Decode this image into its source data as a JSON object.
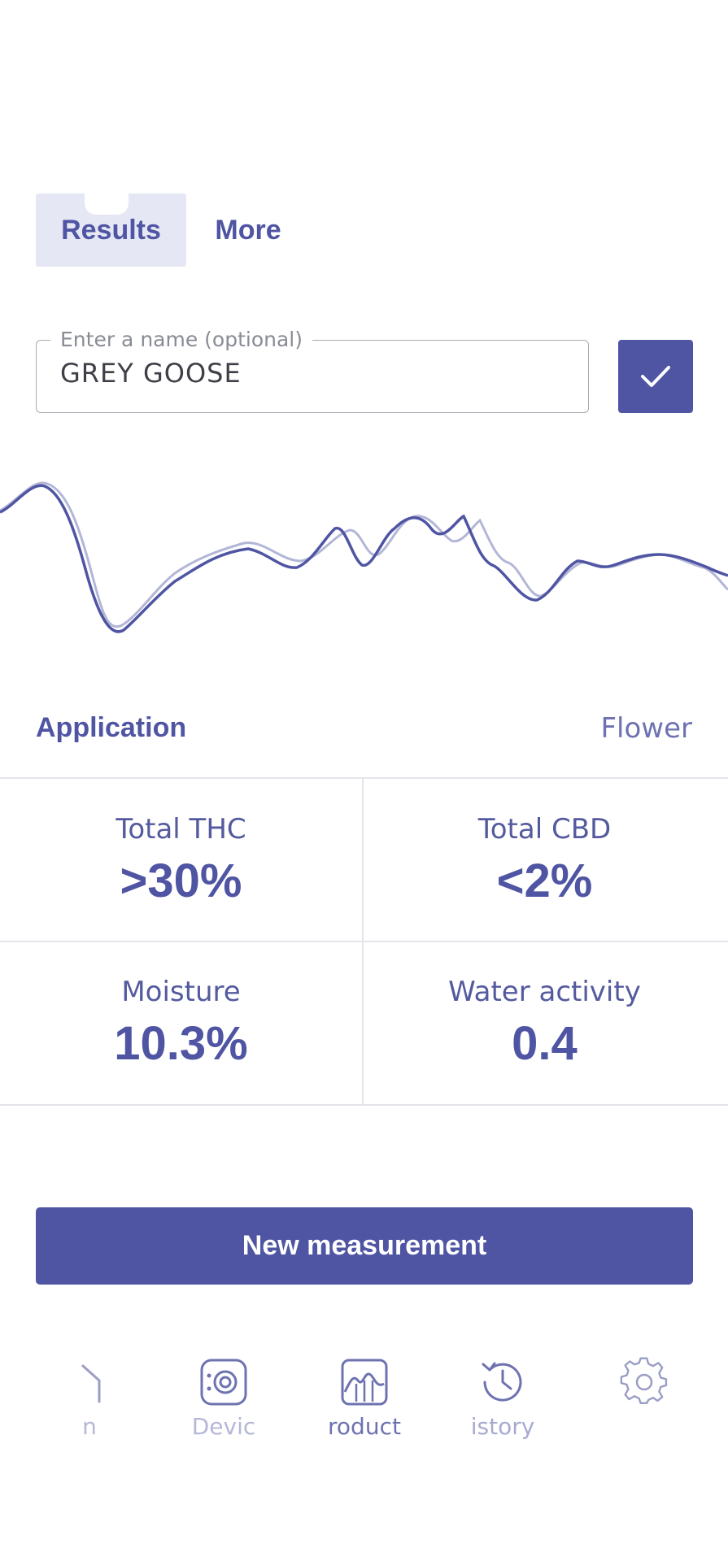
{
  "tabs": [
    {
      "label": "Results",
      "active": true
    },
    {
      "label": "More",
      "active": false
    }
  ],
  "name_field": {
    "legend": "Enter a name (optional)",
    "value": "GREY GOOSE"
  },
  "application": {
    "label": "Application",
    "value": "Flower"
  },
  "metrics": [
    {
      "label": "Total THC",
      "value": ">30%"
    },
    {
      "label": "Total CBD",
      "value": "<2%"
    },
    {
      "label": "Moisture",
      "value": "10.3%"
    },
    {
      "label": "Water activity",
      "value": "0.4"
    }
  ],
  "new_measurement_label": "New measurement",
  "nav": [
    {
      "label": "n",
      "icon": "scan-icon"
    },
    {
      "label": "Devic",
      "icon": "device-icon"
    },
    {
      "label": "roduct",
      "icon": "product-icon"
    },
    {
      "label": "istory",
      "icon": "history-icon"
    },
    {
      "label": "",
      "icon": "gear-icon"
    }
  ],
  "colors": {
    "accent": "#4f55a3",
    "tab_bg": "#e6e7f4",
    "reference_line": "#b3b6d6"
  }
}
